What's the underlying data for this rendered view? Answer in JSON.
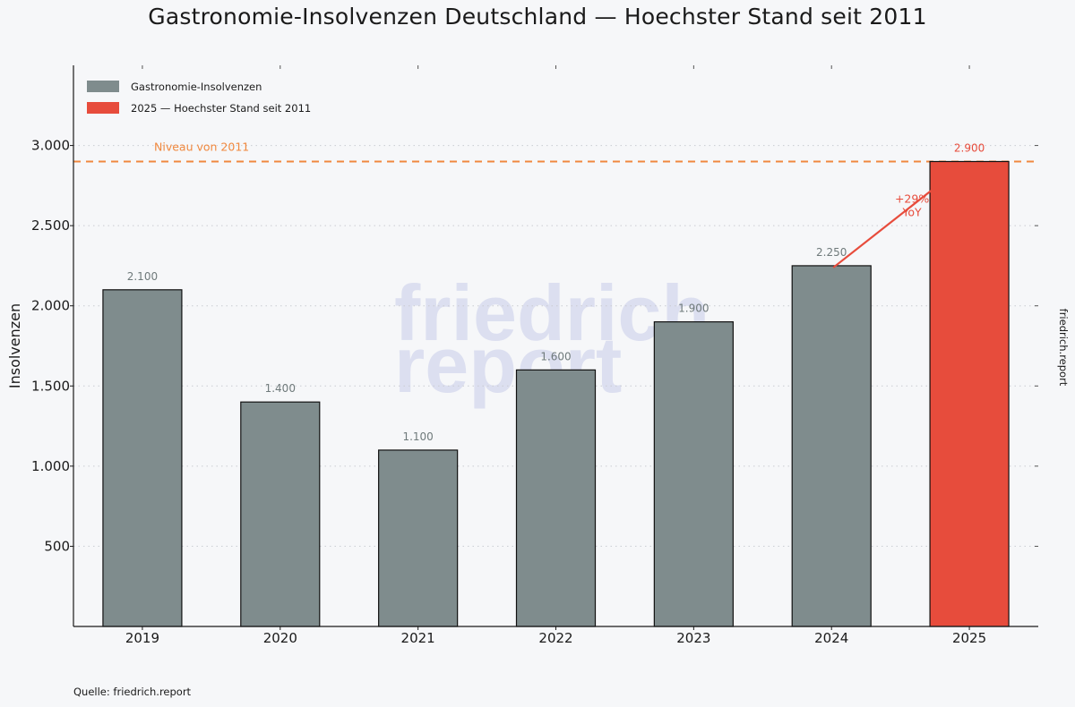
{
  "chart_data": {
    "type": "bar",
    "title": "Gastronomie-Insolvenzen Deutschland — Hoechster Stand seit 2011",
    "xlabel": "",
    "ylabel": "Insolvenzen",
    "categories": [
      "2019",
      "2020",
      "2021",
      "2022",
      "2023",
      "2024",
      "2025"
    ],
    "values": [
      2100,
      1400,
      1100,
      1600,
      1900,
      2250,
      2900
    ],
    "value_labels": [
      "2.100",
      "1.400",
      "1.100",
      "1.600",
      "1.900",
      "2.250",
      "2.900"
    ],
    "highlight_index": 6,
    "ylim": [
      0,
      3500
    ],
    "yticks": [
      500,
      1000,
      1500,
      2000,
      2500,
      3000
    ],
    "ytick_labels": [
      "500",
      "1.000",
      "1.500",
      "2.000",
      "2.500",
      "3.000"
    ],
    "grid": "horizontal dotted",
    "legend": {
      "placement": "top-left",
      "entries": [
        {
          "label": "Gastronomie-Insolvenzen",
          "color": "#7f8c8d"
        },
        {
          "label": "2025 — Hoechster Stand seit 2011",
          "color": "#e74c3c"
        }
      ]
    },
    "reference_line": {
      "value": 2900,
      "label": "Niveau von 2011",
      "color": "#f0883e"
    },
    "annotation": {
      "text_line1": "+29%",
      "text_line2": "YoY",
      "from_index": 5,
      "to_index": 6,
      "color": "#e74c3c"
    },
    "colors": {
      "default_bar": "#7f8c8d",
      "highlight_bar": "#e74c3c",
      "bar_edge": "#111111"
    },
    "watermark": [
      "friedrich.",
      "report"
    ]
  },
  "footer": {
    "source": "Quelle: friedrich.report",
    "side_credit": "friedrich.report"
  }
}
